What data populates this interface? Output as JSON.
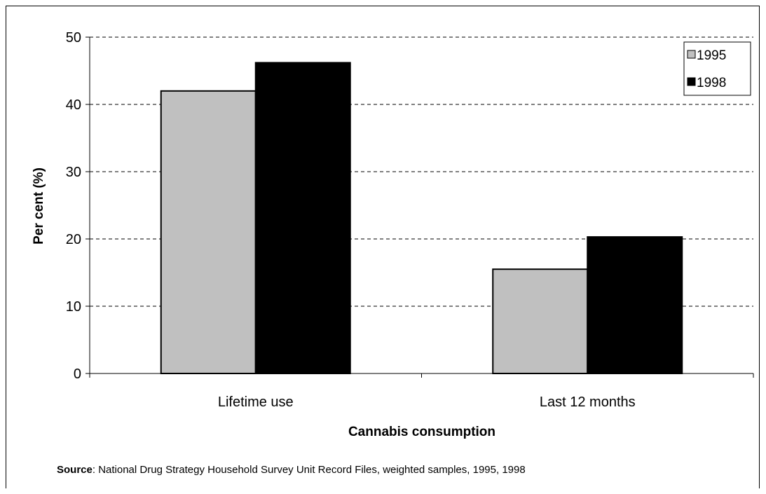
{
  "chart_data": {
    "type": "bar",
    "categories": [
      "Lifetime use",
      "Last 12 months"
    ],
    "series": [
      {
        "name": "1995",
        "values": [
          42.0,
          15.5
        ],
        "color": "#c0c0c0"
      },
      {
        "name": "1998",
        "values": [
          46.2,
          20.3
        ],
        "color": "#000000"
      }
    ],
    "xlabel": "Cannabis consumption",
    "ylabel": "Per cent (%)",
    "ylim": [
      0,
      50
    ],
    "yticks": [
      0,
      10,
      20,
      30,
      40,
      50
    ],
    "grid": "horizontal dashed",
    "legend": "top-right"
  },
  "source": {
    "label": "Source",
    "text": ": National Drug Strategy Household Survey Unit Record Files, weighted samples, 1995, 1998"
  }
}
